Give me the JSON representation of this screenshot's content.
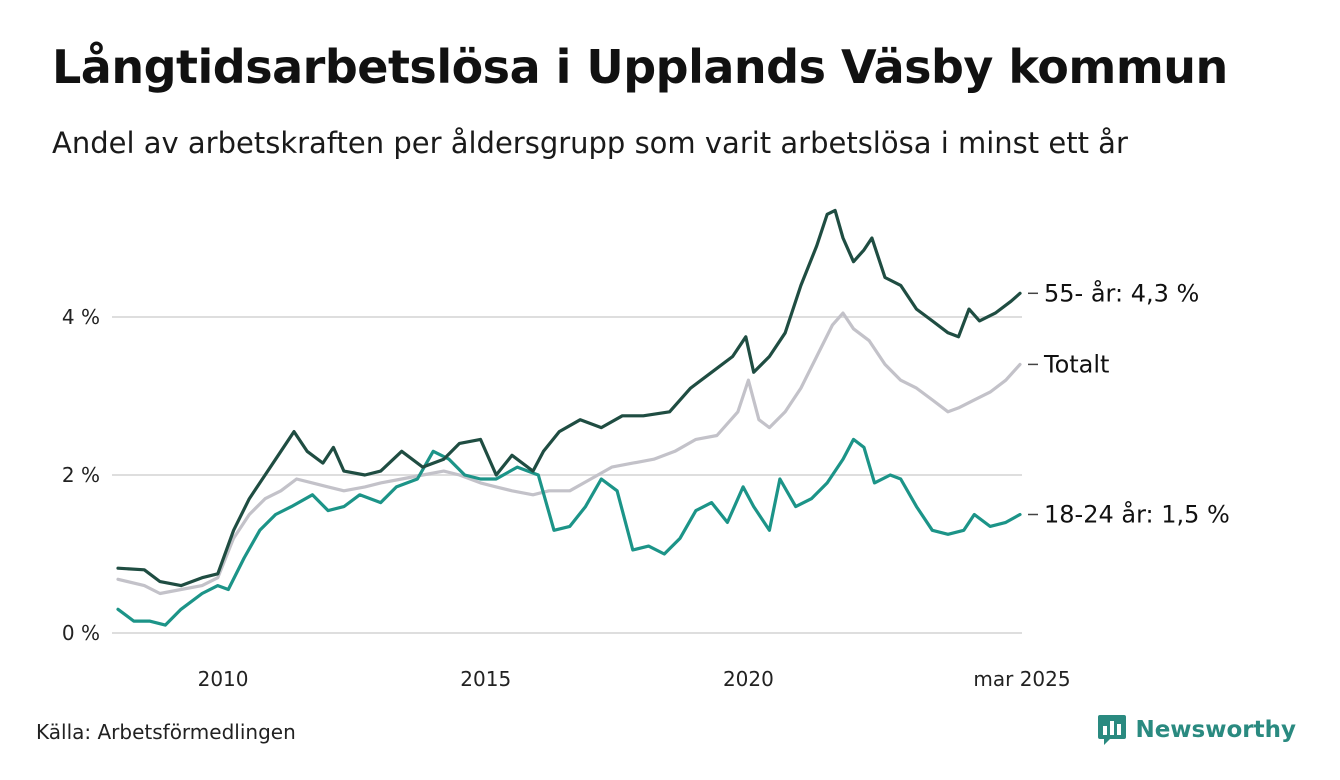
{
  "title": "Långtidsarbetslösa i Upplands Väsby kommun",
  "subtitle": "Andel av arbetskraften per åldersgrupp som varit arbetslösa i minst ett år",
  "source": "Källa: Arbetsförmedlingen",
  "brand": {
    "name": "Newsworthy",
    "icon": "bar-chart-logo-icon"
  },
  "colors": {
    "older": "#1f4d42",
    "total": "#c3c2c9",
    "young": "#1c9488",
    "grid": "#dedede",
    "brand": "#2a8a80"
  },
  "chart_data": {
    "type": "line",
    "x_range": [
      2008.0,
      2025.17
    ],
    "ylim": [
      0,
      5.5
    ],
    "y_ticks": [
      {
        "value": 0,
        "label": "0 %"
      },
      {
        "value": 2,
        "label": "2 %"
      },
      {
        "value": 4,
        "label": "4 %"
      }
    ],
    "x_ticks": [
      {
        "value": 2010,
        "label": "2010"
      },
      {
        "value": 2015,
        "label": "2015"
      },
      {
        "value": 2020,
        "label": "2020"
      },
      {
        "value": 2025.17,
        "label": "mar 2025"
      }
    ],
    "grid": "horizontal",
    "series": [
      {
        "name": "55- år",
        "end_label": "55- år: 4,3 %",
        "color_key": "older",
        "points": [
          [
            2008.0,
            0.82
          ],
          [
            2008.5,
            0.8
          ],
          [
            2008.8,
            0.65
          ],
          [
            2009.2,
            0.6
          ],
          [
            2009.6,
            0.7
          ],
          [
            2009.9,
            0.75
          ],
          [
            2010.2,
            1.3
          ],
          [
            2010.5,
            1.7
          ],
          [
            2010.8,
            2.0
          ],
          [
            2011.1,
            2.3
          ],
          [
            2011.35,
            2.55
          ],
          [
            2011.6,
            2.3
          ],
          [
            2011.9,
            2.15
          ],
          [
            2012.1,
            2.35
          ],
          [
            2012.3,
            2.05
          ],
          [
            2012.7,
            2.0
          ],
          [
            2013.0,
            2.05
          ],
          [
            2013.4,
            2.3
          ],
          [
            2013.8,
            2.1
          ],
          [
            2014.2,
            2.2
          ],
          [
            2014.5,
            2.4
          ],
          [
            2014.9,
            2.45
          ],
          [
            2015.2,
            2.0
          ],
          [
            2015.5,
            2.25
          ],
          [
            2015.9,
            2.05
          ],
          [
            2016.1,
            2.3
          ],
          [
            2016.4,
            2.55
          ],
          [
            2016.8,
            2.7
          ],
          [
            2017.2,
            2.6
          ],
          [
            2017.6,
            2.75
          ],
          [
            2018.0,
            2.75
          ],
          [
            2018.5,
            2.8
          ],
          [
            2018.9,
            3.1
          ],
          [
            2019.3,
            3.3
          ],
          [
            2019.7,
            3.5
          ],
          [
            2019.95,
            3.75
          ],
          [
            2020.1,
            3.3
          ],
          [
            2020.4,
            3.5
          ],
          [
            2020.7,
            3.8
          ],
          [
            2021.0,
            4.4
          ],
          [
            2021.3,
            4.9
          ],
          [
            2021.5,
            5.3
          ],
          [
            2021.65,
            5.35
          ],
          [
            2021.8,
            5.0
          ],
          [
            2022.0,
            4.7
          ],
          [
            2022.2,
            4.85
          ],
          [
            2022.35,
            5.0
          ],
          [
            2022.6,
            4.5
          ],
          [
            2022.9,
            4.4
          ],
          [
            2023.2,
            4.1
          ],
          [
            2023.5,
            3.95
          ],
          [
            2023.8,
            3.8
          ],
          [
            2024.0,
            3.75
          ],
          [
            2024.2,
            4.1
          ],
          [
            2024.4,
            3.95
          ],
          [
            2024.7,
            4.05
          ],
          [
            2025.0,
            4.2
          ],
          [
            2025.17,
            4.3
          ]
        ]
      },
      {
        "name": "Totalt",
        "end_label": "Totalt",
        "color_key": "total",
        "points": [
          [
            2008.0,
            0.68
          ],
          [
            2008.5,
            0.6
          ],
          [
            2008.8,
            0.5
          ],
          [
            2009.2,
            0.55
          ],
          [
            2009.6,
            0.6
          ],
          [
            2009.9,
            0.7
          ],
          [
            2010.2,
            1.2
          ],
          [
            2010.5,
            1.5
          ],
          [
            2010.8,
            1.7
          ],
          [
            2011.1,
            1.8
          ],
          [
            2011.4,
            1.95
          ],
          [
            2011.7,
            1.9
          ],
          [
            2012.0,
            1.85
          ],
          [
            2012.3,
            1.8
          ],
          [
            2012.7,
            1.85
          ],
          [
            2013.0,
            1.9
          ],
          [
            2013.4,
            1.95
          ],
          [
            2013.8,
            2.0
          ],
          [
            2014.2,
            2.05
          ],
          [
            2014.5,
            2.0
          ],
          [
            2014.9,
            1.9
          ],
          [
            2015.2,
            1.85
          ],
          [
            2015.5,
            1.8
          ],
          [
            2015.9,
            1.75
          ],
          [
            2016.2,
            1.8
          ],
          [
            2016.6,
            1.8
          ],
          [
            2017.0,
            1.95
          ],
          [
            2017.4,
            2.1
          ],
          [
            2017.8,
            2.15
          ],
          [
            2018.2,
            2.2
          ],
          [
            2018.6,
            2.3
          ],
          [
            2019.0,
            2.45
          ],
          [
            2019.4,
            2.5
          ],
          [
            2019.8,
            2.8
          ],
          [
            2020.0,
            3.2
          ],
          [
            2020.2,
            2.7
          ],
          [
            2020.4,
            2.6
          ],
          [
            2020.7,
            2.8
          ],
          [
            2021.0,
            3.1
          ],
          [
            2021.3,
            3.5
          ],
          [
            2021.6,
            3.9
          ],
          [
            2021.8,
            4.05
          ],
          [
            2022.0,
            3.85
          ],
          [
            2022.3,
            3.7
          ],
          [
            2022.6,
            3.4
          ],
          [
            2022.9,
            3.2
          ],
          [
            2023.2,
            3.1
          ],
          [
            2023.5,
            2.95
          ],
          [
            2023.8,
            2.8
          ],
          [
            2024.0,
            2.85
          ],
          [
            2024.3,
            2.95
          ],
          [
            2024.6,
            3.05
          ],
          [
            2024.9,
            3.2
          ],
          [
            2025.17,
            3.4
          ]
        ]
      },
      {
        "name": "18-24 år",
        "end_label": "18-24 år: 1,5 %",
        "color_key": "young",
        "points": [
          [
            2008.0,
            0.3
          ],
          [
            2008.3,
            0.15
          ],
          [
            2008.6,
            0.15
          ],
          [
            2008.9,
            0.1
          ],
          [
            2009.2,
            0.3
          ],
          [
            2009.6,
            0.5
          ],
          [
            2009.9,
            0.6
          ],
          [
            2010.1,
            0.55
          ],
          [
            2010.4,
            0.95
          ],
          [
            2010.7,
            1.3
          ],
          [
            2011.0,
            1.5
          ],
          [
            2011.3,
            1.6
          ],
          [
            2011.7,
            1.75
          ],
          [
            2012.0,
            1.55
          ],
          [
            2012.3,
            1.6
          ],
          [
            2012.6,
            1.75
          ],
          [
            2013.0,
            1.65
          ],
          [
            2013.3,
            1.85
          ],
          [
            2013.7,
            1.95
          ],
          [
            2014.0,
            2.3
          ],
          [
            2014.3,
            2.2
          ],
          [
            2014.6,
            2.0
          ],
          [
            2014.9,
            1.95
          ],
          [
            2015.2,
            1.95
          ],
          [
            2015.6,
            2.1
          ],
          [
            2016.0,
            2.0
          ],
          [
            2016.3,
            1.3
          ],
          [
            2016.6,
            1.35
          ],
          [
            2016.9,
            1.6
          ],
          [
            2017.2,
            1.95
          ],
          [
            2017.5,
            1.8
          ],
          [
            2017.8,
            1.05
          ],
          [
            2018.1,
            1.1
          ],
          [
            2018.4,
            1.0
          ],
          [
            2018.7,
            1.2
          ],
          [
            2019.0,
            1.55
          ],
          [
            2019.3,
            1.65
          ],
          [
            2019.6,
            1.4
          ],
          [
            2019.9,
            1.85
          ],
          [
            2020.1,
            1.6
          ],
          [
            2020.4,
            1.3
          ],
          [
            2020.6,
            1.95
          ],
          [
            2020.9,
            1.6
          ],
          [
            2021.2,
            1.7
          ],
          [
            2021.5,
            1.9
          ],
          [
            2021.8,
            2.2
          ],
          [
            2022.0,
            2.45
          ],
          [
            2022.2,
            2.35
          ],
          [
            2022.4,
            1.9
          ],
          [
            2022.7,
            2.0
          ],
          [
            2022.9,
            1.95
          ],
          [
            2023.2,
            1.6
          ],
          [
            2023.5,
            1.3
          ],
          [
            2023.8,
            1.25
          ],
          [
            2024.1,
            1.3
          ],
          [
            2024.3,
            1.5
          ],
          [
            2024.6,
            1.35
          ],
          [
            2024.9,
            1.4
          ],
          [
            2025.17,
            1.5
          ]
        ]
      }
    ]
  }
}
